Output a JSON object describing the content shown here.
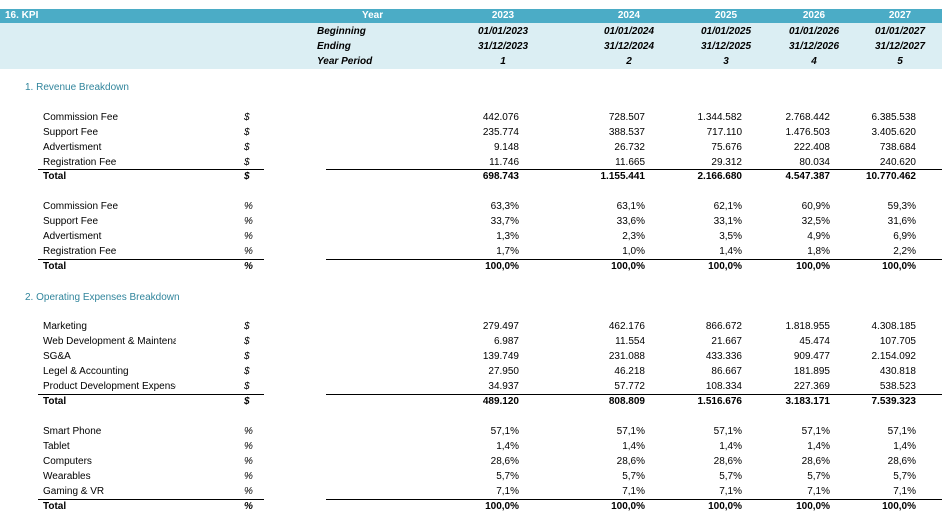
{
  "header": {
    "kpi_label": "16.  KPI",
    "year_label": "Year",
    "beginning_label": "Beginning",
    "ending_label": "Ending",
    "period_label": "Year Period",
    "years": [
      "2023",
      "2024",
      "2025",
      "2026",
      "2027"
    ],
    "beginnings": [
      "01/01/2023",
      "01/01/2024",
      "01/01/2025",
      "01/01/2026",
      "01/01/2027"
    ],
    "endings": [
      "31/12/2023",
      "31/12/2024",
      "31/12/2025",
      "31/12/2026",
      "31/12/2027"
    ],
    "periods": [
      "1",
      "2",
      "3",
      "4",
      "5"
    ]
  },
  "revenue": {
    "title": "1.  Revenue Breakdown",
    "amounts": [
      {
        "label": "Commission Fee",
        "unit": "$",
        "values": [
          "442.076",
          "728.507",
          "1.344.582",
          "2.768.442",
          "6.385.538"
        ]
      },
      {
        "label": "Support Fee",
        "unit": "$",
        "values": [
          "235.774",
          "388.537",
          "717.110",
          "1.476.503",
          "3.405.620"
        ]
      },
      {
        "label": "Advertisment",
        "unit": "$",
        "values": [
          "9.148",
          "26.732",
          "75.676",
          "222.408",
          "738.684"
        ]
      },
      {
        "label": "Registration Fee",
        "unit": "$",
        "values": [
          "11.746",
          "11.665",
          "29.312",
          "80.034",
          "240.620"
        ]
      }
    ],
    "amount_total": {
      "label": "Total",
      "unit": "$",
      "values": [
        "698.743",
        "1.155.441",
        "2.166.680",
        "4.547.387",
        "10.770.462"
      ]
    },
    "shares": [
      {
        "label": "Commission Fee",
        "unit": "%",
        "values": [
          "63,3%",
          "63,1%",
          "62,1%",
          "60,9%",
          "59,3%"
        ]
      },
      {
        "label": "Support Fee",
        "unit": "%",
        "values": [
          "33,7%",
          "33,6%",
          "33,1%",
          "32,5%",
          "31,6%"
        ]
      },
      {
        "label": "Advertisment",
        "unit": "%",
        "values": [
          "1,3%",
          "2,3%",
          "3,5%",
          "4,9%",
          "6,9%"
        ]
      },
      {
        "label": "Registration Fee",
        "unit": "%",
        "values": [
          "1,7%",
          "1,0%",
          "1,4%",
          "1,8%",
          "2,2%"
        ]
      }
    ],
    "share_total": {
      "label": "Total",
      "unit": "%",
      "values": [
        "100,0%",
        "100,0%",
        "100,0%",
        "100,0%",
        "100,0%"
      ]
    }
  },
  "opex": {
    "title": "2.  Operating Expenses Breakdown",
    "amounts": [
      {
        "label": "Marketing",
        "unit": "$",
        "values": [
          "279.497",
          "462.176",
          "866.672",
          "1.818.955",
          "4.308.185"
        ]
      },
      {
        "label": "Web Development & Maintenance",
        "unit": "$",
        "values": [
          "6.987",
          "11.554",
          "21.667",
          "45.474",
          "107.705"
        ]
      },
      {
        "label": "SG&A",
        "unit": "$",
        "values": [
          "139.749",
          "231.088",
          "433.336",
          "909.477",
          "2.154.092"
        ]
      },
      {
        "label": "Legel & Accounting",
        "unit": "$",
        "values": [
          "27.950",
          "46.218",
          "86.667",
          "181.895",
          "430.818"
        ]
      },
      {
        "label": "Product Development Expenses",
        "unit": "$",
        "values": [
          "34.937",
          "57.772",
          "108.334",
          "227.369",
          "538.523"
        ]
      }
    ],
    "amount_total": {
      "label": "Total",
      "unit": "$",
      "values": [
        "489.120",
        "808.809",
        "1.516.676",
        "3.183.171",
        "7.539.323"
      ]
    },
    "shares": [
      {
        "label": "Smart Phone",
        "unit": "%",
        "values": [
          "57,1%",
          "57,1%",
          "57,1%",
          "57,1%",
          "57,1%"
        ]
      },
      {
        "label": "Tablet",
        "unit": "%",
        "values": [
          "1,4%",
          "1,4%",
          "1,4%",
          "1,4%",
          "1,4%"
        ]
      },
      {
        "label": "Computers",
        "unit": "%",
        "values": [
          "28,6%",
          "28,6%",
          "28,6%",
          "28,6%",
          "28,6%"
        ]
      },
      {
        "label": "Wearables",
        "unit": "%",
        "values": [
          "5,7%",
          "5,7%",
          "5,7%",
          "5,7%",
          "5,7%"
        ]
      },
      {
        "label": "Gaming & VR",
        "unit": "%",
        "values": [
          "7,1%",
          "7,1%",
          "7,1%",
          "7,1%",
          "7,1%"
        ]
      }
    ],
    "share_total": {
      "label": "Total",
      "unit": "%",
      "values": [
        "100,0%",
        "100,0%",
        "100,0%",
        "100,0%",
        "100,0%"
      ]
    }
  }
}
